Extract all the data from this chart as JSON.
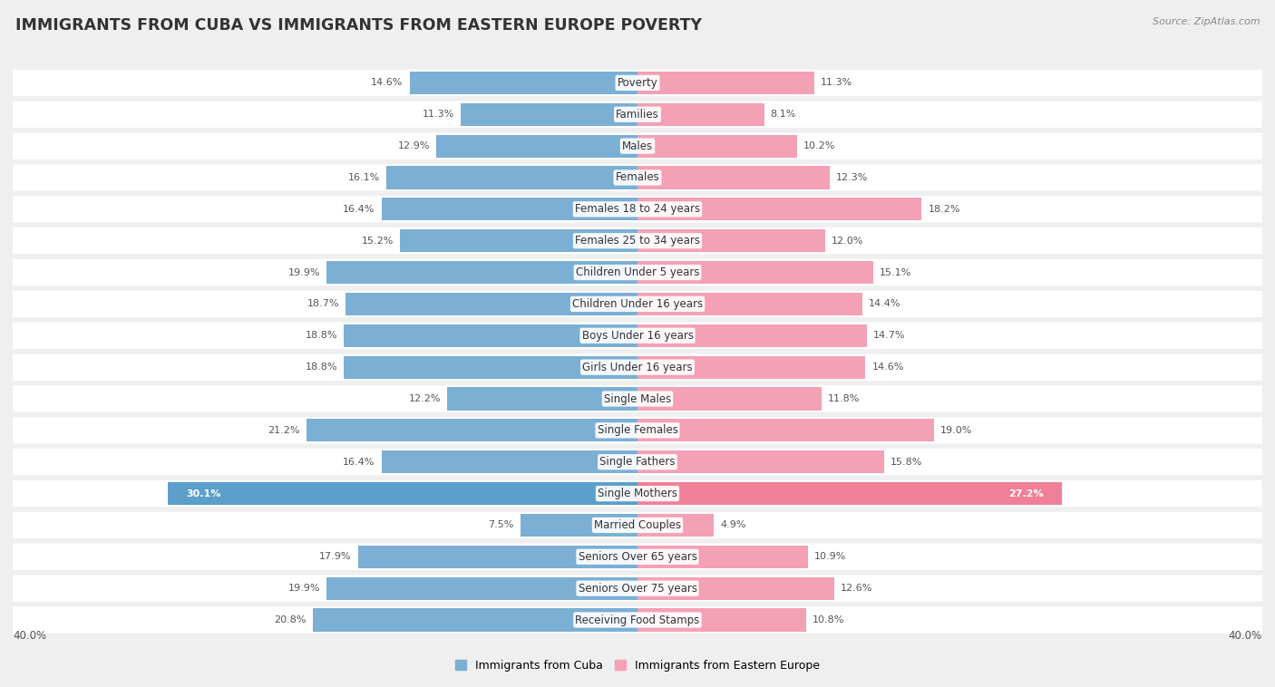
{
  "title": "IMMIGRANTS FROM CUBA VS IMMIGRANTS FROM EASTERN EUROPE POVERTY",
  "source": "Source: ZipAtlas.com",
  "categories": [
    "Poverty",
    "Families",
    "Males",
    "Females",
    "Females 18 to 24 years",
    "Females 25 to 34 years",
    "Children Under 5 years",
    "Children Under 16 years",
    "Boys Under 16 years",
    "Girls Under 16 years",
    "Single Males",
    "Single Females",
    "Single Fathers",
    "Single Mothers",
    "Married Couples",
    "Seniors Over 65 years",
    "Seniors Over 75 years",
    "Receiving Food Stamps"
  ],
  "cuba_values": [
    14.6,
    11.3,
    12.9,
    16.1,
    16.4,
    15.2,
    19.9,
    18.7,
    18.8,
    18.8,
    12.2,
    21.2,
    16.4,
    30.1,
    7.5,
    17.9,
    19.9,
    20.8
  ],
  "eastern_europe_values": [
    11.3,
    8.1,
    10.2,
    12.3,
    18.2,
    12.0,
    15.1,
    14.4,
    14.7,
    14.6,
    11.8,
    19.0,
    15.8,
    27.2,
    4.9,
    10.9,
    12.6,
    10.8
  ],
  "cuba_color": "#7bafd4",
  "eastern_europe_color": "#f4a0b5",
  "cuba_highlight_color": "#5b9fca",
  "eastern_europe_highlight_color": "#f08098",
  "background_color": "#efefef",
  "bar_bg_color": "#ffffff",
  "max_val": 40.0,
  "legend_cuba": "Immigrants from Cuba",
  "legend_eastern": "Immigrants from Eastern Europe",
  "title_fontsize": 12.5,
  "label_fontsize": 8.5,
  "value_fontsize": 8.0,
  "axis_label_fontsize": 8.5
}
